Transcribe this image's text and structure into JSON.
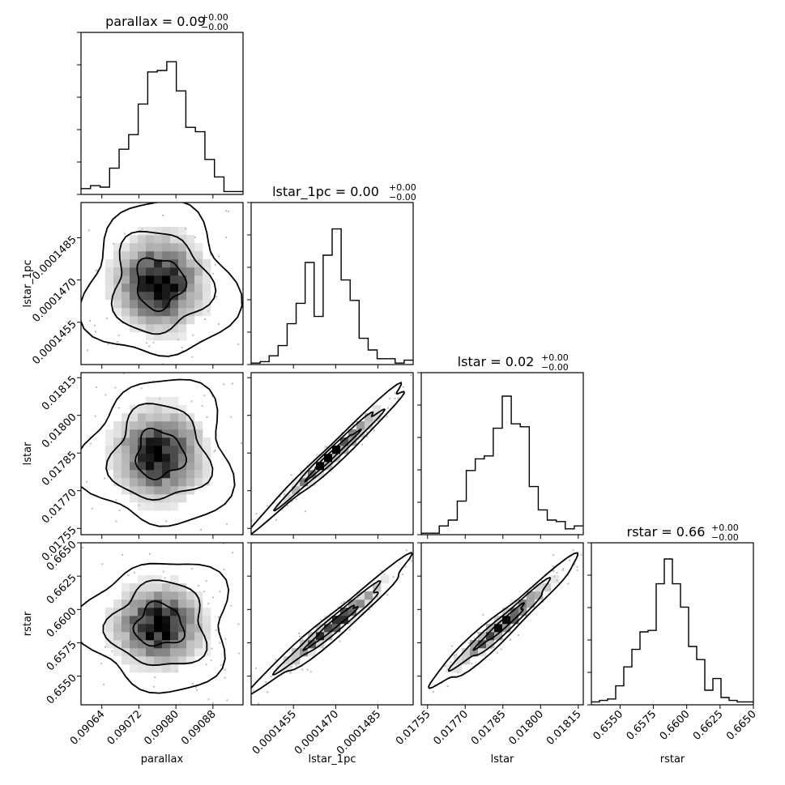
{
  "chart_data": {
    "type": "corner",
    "parameters": [
      {
        "name": "parallax",
        "label": "parallax",
        "title": "parallax = 0.09",
        "sup": "+0.00",
        "sub": "−0.00",
        "range": [
          0.090595,
          0.090945
        ],
        "ticks": [
          0.09064,
          0.09072,
          0.0908,
          0.09088
        ],
        "tick_labels": [
          "0.09064",
          "0.09072",
          "0.09080",
          "0.09088"
        ],
        "hist": [
          0.04,
          0.06,
          0.05,
          0.18,
          0.31,
          0.41,
          0.62,
          0.84,
          0.85,
          0.91,
          0.71,
          0.46,
          0.43,
          0.24,
          0.12,
          0.02,
          0.02
        ],
        "center": 0.090764,
        "sigma": 5.2e-05
      },
      {
        "name": "lstar_1pc",
        "label": "lstar_1pc",
        "title": "lstar_1pc = 0.00",
        "sup": "+0.00",
        "sub": "−0.00",
        "range": [
          0.000144,
          0.00014975
        ],
        "ticks": [
          0.0001455,
          0.000147,
          0.0001485
        ],
        "tick_labels": [
          "0.0001455",
          "0.0001470",
          "0.0001485"
        ],
        "hist": [
          0.01,
          0.02,
          0.06,
          0.13,
          0.28,
          0.42,
          0.7,
          0.33,
          0.75,
          0.93,
          0.58,
          0.44,
          0.18,
          0.1,
          0.04,
          0.04,
          0.01,
          0.03
        ],
        "center": 0.0001469,
        "sigma": 9e-07
      },
      {
        "name": "lstar",
        "label": "lstar",
        "title": "lstar = 0.02",
        "sup": "+0.00",
        "sub": "−0.00",
        "range": [
          0.017525,
          0.01817
        ],
        "ticks": [
          0.01755,
          0.0177,
          0.01785,
          0.018,
          0.01815
        ],
        "tick_labels": [
          "0.01755",
          "0.01770",
          "0.01785",
          "0.01800",
          "0.01815"
        ],
        "hist": [
          0.01,
          0.01,
          0.06,
          0.1,
          0.23,
          0.44,
          0.52,
          0.54,
          0.73,
          0.95,
          0.76,
          0.74,
          0.33,
          0.17,
          0.1,
          0.09,
          0.04,
          0.06
        ],
        "center": 0.017845,
        "sigma": 9.5e-05
      },
      {
        "name": "rstar",
        "label": "rstar",
        "title": "rstar = 0.66",
        "sup": "+0.00",
        "sub": "−0.00",
        "range": [
          0.65285,
          0.665
        ],
        "ticks": [
          0.655,
          0.6575,
          0.66,
          0.6625,
          0.665
        ],
        "tick_labels": [
          "0.6550",
          "0.6575",
          "0.6600",
          "0.6625",
          "0.6650"
        ],
        "hist": [
          0.02,
          0.03,
          0.04,
          0.13,
          0.26,
          0.38,
          0.5,
          0.51,
          0.83,
          1.0,
          0.83,
          0.67,
          0.4,
          0.31,
          0.1,
          0.18,
          0.05,
          0.03,
          0.02,
          0.02
        ],
        "center": 0.6588,
        "sigma": 0.0016
      }
    ],
    "correlation": [
      [
        1.0,
        0.0,
        0.0,
        0.0
      ],
      [
        0.0,
        1.0,
        0.985,
        0.975
      ],
      [
        0.0,
        0.985,
        1.0,
        0.97
      ],
      [
        0.0,
        0.975,
        0.97,
        1.0
      ]
    ],
    "contour_levels": [
      0.39,
      0.86,
      0.99
    ],
    "colors": {
      "line": "#000000",
      "density_max": "#000000",
      "points": "#bdbdbd"
    }
  }
}
